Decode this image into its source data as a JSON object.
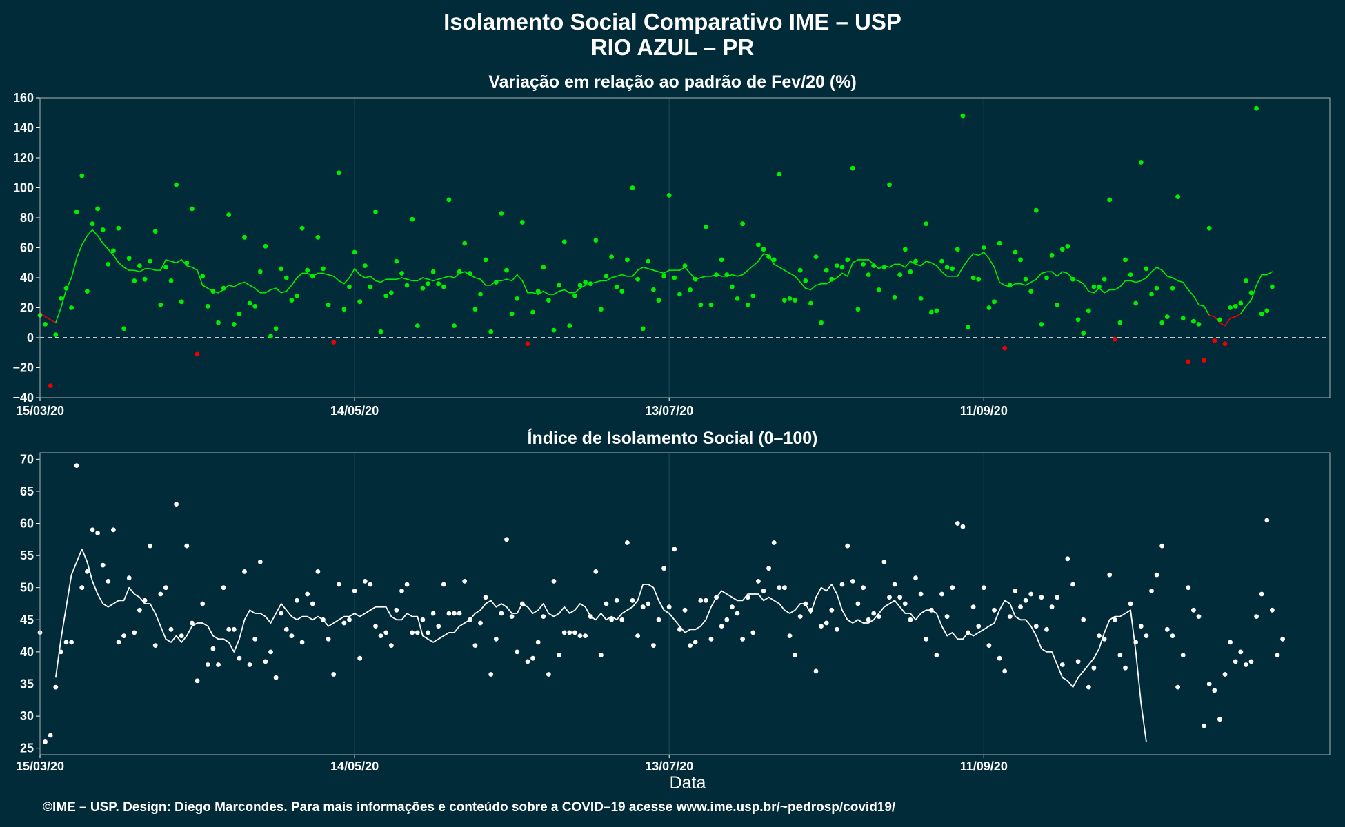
{
  "figure": {
    "title_line1": "Isolamento Social Comparativo IME – USP",
    "title_line2": "RIO AZUL – PR",
    "xlabel": "Data",
    "footer": "©IME – USP. Design: Diego Marcondes. Para mais informações e conteúdo sobre a COVID–19 acesse www.ime.usp.br/~pedrosp/covid19/",
    "colors": {
      "background": "#022b3a",
      "positive": "#00ee00",
      "negative": "#ee0000",
      "index_series": "#ffffff",
      "grid": "#1d4a57",
      "frame": "#a8b4b8"
    }
  },
  "chart_data": [
    {
      "type": "scatter",
      "title": "Variação em relação ao padrão de Fev/20 (%)",
      "x_axis": {
        "type": "date",
        "start": "2020-03-15",
        "end": "2020-11-16",
        "ticks": [
          "15/03/20",
          "14/05/20",
          "13/07/20",
          "11/09/20"
        ],
        "tick_dates": [
          "2020-03-15",
          "2020-05-14",
          "2020-07-13",
          "2020-09-11"
        ]
      },
      "ylim": [
        -40,
        160
      ],
      "yticks": [
        -40,
        -20,
        0,
        20,
        40,
        60,
        80,
        100,
        120,
        140,
        160
      ],
      "reference_line": 0,
      "series": [
        {
          "kind": "daily_points",
          "values": [
            15,
            9,
            -32,
            2,
            26,
            33,
            20,
            84,
            108,
            31,
            76,
            86,
            72,
            49,
            58,
            73,
            6,
            53,
            38,
            48,
            39,
            51,
            71,
            22,
            47,
            38,
            102,
            24,
            50,
            86,
            -11,
            41,
            21,
            31,
            10,
            33,
            82,
            9,
            16,
            67,
            23,
            21,
            44,
            61,
            1,
            6,
            46,
            40,
            25,
            28,
            73,
            45,
            41,
            67,
            46,
            22,
            -3,
            110,
            19,
            34,
            57,
            24,
            48,
            34,
            84,
            4,
            28,
            30,
            51,
            43,
            35,
            79,
            8,
            33,
            36,
            44,
            36,
            34,
            92,
            8,
            44,
            63,
            43,
            19,
            29,
            52,
            4,
            37,
            83,
            45,
            16,
            26,
            77,
            -4,
            17,
            31,
            47,
            25,
            5,
            35,
            64,
            8,
            28,
            35,
            37,
            36,
            65,
            19,
            41,
            54,
            34,
            31,
            52,
            100,
            39,
            6,
            51,
            32,
            25,
            41,
            95,
            40,
            29,
            48,
            32,
            39,
            22,
            74,
            22,
            42,
            52,
            42,
            34,
            26,
            76,
            22,
            28,
            62,
            59,
            54,
            52,
            109,
            25,
            26,
            25,
            45,
            38,
            23,
            54,
            10,
            45,
            39,
            48,
            47,
            52,
            113,
            19,
            49,
            42,
            48,
            32,
            47,
            102,
            27,
            42,
            59,
            44,
            51,
            26,
            76,
            17,
            18,
            51,
            47,
            46,
            59,
            148,
            7,
            40,
            39,
            60,
            20,
            24,
            63,
            -7,
            35,
            57,
            52,
            39,
            31,
            85,
            9,
            40,
            55,
            22,
            59,
            61,
            39,
            12,
            3,
            18,
            34,
            34,
            39,
            92,
            -1,
            10,
            52,
            42,
            23,
            117,
            46,
            29,
            33,
            10,
            14,
            33,
            94,
            13,
            -16,
            11,
            9,
            -15,
            73,
            -2,
            12,
            -4,
            20,
            21,
            23,
            38,
            30,
            153,
            16,
            18,
            34
          ]
        },
        {
          "kind": "moving_average",
          "values": [
            17,
            14,
            12,
            10,
            20,
            32,
            40,
            53,
            62,
            68,
            72,
            68,
            63,
            59,
            55,
            50,
            47,
            45,
            45,
            44,
            46,
            46,
            45,
            45,
            52,
            51,
            50,
            52,
            48,
            47,
            45,
            35,
            33,
            31,
            30,
            32,
            35,
            34,
            36,
            37,
            35,
            33,
            30,
            30,
            32,
            33,
            30,
            31,
            35,
            40,
            43,
            43,
            41,
            43,
            43,
            42,
            41,
            38,
            36,
            40,
            46,
            42,
            40,
            41,
            38,
            37,
            39,
            39,
            39,
            40,
            39,
            38,
            38,
            40,
            39,
            38,
            39,
            40,
            41,
            40,
            43,
            44,
            42,
            40,
            39,
            35,
            35,
            38,
            38,
            39,
            38,
            42,
            38,
            30,
            30,
            29,
            31,
            29,
            29,
            31,
            32,
            30,
            30,
            33,
            35,
            36,
            37,
            38,
            38,
            40,
            41,
            42,
            41,
            41,
            45,
            47,
            46,
            45,
            44,
            43,
            45,
            45,
            45,
            47,
            43,
            39,
            40,
            41,
            41,
            42,
            41,
            41,
            42,
            41,
            42,
            45,
            48,
            51,
            56,
            55,
            49,
            47,
            45,
            43,
            41,
            37,
            33,
            32,
            35,
            36,
            36,
            38,
            40,
            43,
            41,
            50,
            52,
            52,
            52,
            49,
            46,
            48,
            47,
            49,
            49,
            47,
            51,
            49,
            48,
            51,
            50,
            48,
            44,
            41,
            41,
            41,
            47,
            52,
            56,
            55,
            57,
            53,
            47,
            37,
            35,
            34,
            36,
            36,
            35,
            37,
            39,
            43,
            44,
            44,
            41,
            44,
            43,
            39,
            38,
            36,
            31,
            30,
            33,
            30,
            32,
            32,
            34,
            38,
            38,
            37,
            38,
            40,
            44,
            47,
            45,
            41,
            40,
            38,
            37,
            32,
            28,
            22,
            21,
            15,
            14,
            10,
            8,
            13,
            14,
            16,
            21,
            25,
            35,
            42,
            42,
            44
          ]
        }
      ]
    },
    {
      "type": "scatter",
      "title": "Índice de Isolamento Social (0–100)",
      "x_axis": {
        "type": "date",
        "start": "2020-03-15",
        "end": "2020-11-16",
        "ticks": [
          "15/03/20",
          "14/05/20",
          "13/07/20",
          "11/09/20"
        ],
        "tick_dates": [
          "2020-03-15",
          "2020-05-14",
          "2020-07-13",
          "2020-09-11"
        ]
      },
      "xlabel": "Data",
      "ylim": [
        24,
        71
      ],
      "yticks": [
        25,
        30,
        35,
        40,
        45,
        50,
        55,
        60,
        65,
        70
      ],
      "series": [
        {
          "kind": "daily_points",
          "values": [
            43,
            26,
            27,
            34.5,
            40,
            41.5,
            41.5,
            69,
            50,
            52.5,
            59,
            58.5,
            53.5,
            51,
            59,
            41.5,
            42.5,
            51.5,
            43,
            46.5,
            48,
            56.5,
            41,
            49,
            50,
            43.5,
            63,
            42.5,
            56.5,
            44.5,
            35.5,
            47.5,
            38,
            40.5,
            38,
            50,
            43.5,
            43.5,
            39,
            52.5,
            38,
            42,
            54,
            38.5,
            40,
            36,
            46,
            43.5,
            42.5,
            48,
            41.5,
            49,
            47.5,
            52.5,
            45,
            42,
            36.5,
            50.5,
            44.5,
            45,
            49.5,
            39,
            51,
            50.5,
            44,
            42.5,
            43,
            41,
            46.5,
            49.5,
            50.5,
            43,
            43,
            45,
            43,
            46,
            44,
            50.5,
            46,
            46,
            46,
            51,
            45,
            41,
            44.5,
            48.5,
            36.5,
            42,
            46,
            57.5,
            45.5,
            40,
            47.5,
            38.5,
            39,
            41.5,
            45.5,
            36.5,
            51,
            39.5,
            43,
            43,
            43,
            42.5,
            42.5,
            45.5,
            52.5,
            39.5,
            47.5,
            45,
            48,
            45,
            57,
            48,
            42.5,
            47,
            47.5,
            41,
            45,
            53,
            47,
            56,
            43.5,
            46.5,
            41,
            41.5,
            48,
            48,
            42,
            48.5,
            44,
            45,
            47,
            46,
            42,
            48.5,
            43,
            51,
            49.5,
            53,
            57,
            50,
            50,
            42.5,
            39.5,
            45.5,
            47.5,
            46.5,
            37,
            44,
            44.5,
            46.5,
            43.5,
            50.5,
            56.5,
            51,
            47.5,
            50,
            45,
            46,
            45.5,
            54,
            48.5,
            50.5,
            48.5,
            47.5,
            45,
            51.5,
            49,
            42,
            46.5,
            39.5,
            49,
            45.5,
            50,
            60,
            59.5,
            43,
            47,
            44,
            50,
            41,
            46.5,
            39,
            37,
            45.5,
            49.5,
            47,
            48,
            49,
            44,
            48.5,
            43.5,
            47,
            48.5,
            38,
            54.5,
            50.5,
            38.5,
            45,
            34.5,
            37.5,
            42.5,
            42,
            52,
            45,
            39.5,
            37.5,
            47.5,
            41.5,
            44,
            42.5,
            49.5,
            52,
            56.5,
            43.5,
            42.5,
            34.5,
            39.5,
            50,
            46.5,
            45.5,
            28.5,
            35,
            34,
            29.5,
            36.5,
            41.5,
            38.5,
            40,
            38,
            38.5,
            45.5,
            49,
            60.5,
            46.5,
            39.5,
            42
          ]
        },
        {
          "kind": "moving_average",
          "values": [
            null,
            null,
            null,
            36,
            42,
            47,
            52,
            54,
            56,
            54,
            51,
            49,
            47.5,
            47,
            47.5,
            48,
            48,
            50,
            49,
            48.5,
            47.5,
            47.5,
            46,
            44,
            42,
            41.5,
            42.5,
            41.5,
            42.5,
            44,
            44.5,
            44.5,
            44,
            42.5,
            42,
            42,
            41.5,
            40,
            42,
            45,
            46.5,
            46,
            46,
            45.5,
            44.5,
            46,
            47.5,
            46.5,
            45.5,
            45,
            45.5,
            45.5,
            45,
            45.5,
            45,
            44,
            44.5,
            45,
            45.5,
            45.5,
            46,
            45.5,
            46,
            46.5,
            47,
            47,
            47,
            45.5,
            45,
            45,
            46,
            45.5,
            45.5,
            42.5,
            42,
            41.5,
            42,
            42.5,
            43,
            43,
            44,
            44.5,
            45,
            46,
            46.5,
            47.5,
            48,
            47,
            47.5,
            47,
            46,
            46,
            47.5,
            47,
            46,
            46.5,
            47.5,
            46,
            45.5,
            46,
            47,
            46,
            46.5,
            47.5,
            47,
            45.5,
            45,
            46,
            45,
            45.5,
            45,
            46,
            46.5,
            47,
            48,
            50.5,
            50.5,
            50,
            48,
            46.5,
            46,
            45,
            44,
            43,
            43.5,
            43.5,
            44,
            45,
            47,
            48.5,
            49.5,
            49,
            48.5,
            48,
            48,
            49,
            49,
            49,
            48,
            48.5,
            48,
            47.5,
            46.5,
            46,
            46.5,
            47.5,
            47.5,
            46,
            48.5,
            50,
            49.5,
            50.5,
            49,
            46.5,
            45,
            44.5,
            45,
            44.5,
            44.5,
            45,
            46,
            47,
            47.5,
            48,
            47,
            46,
            46,
            45,
            46,
            46.5,
            46.5,
            46,
            44,
            42.5,
            43,
            42,
            42,
            43,
            42.5,
            43,
            43.5,
            44,
            44.5,
            46.5,
            48,
            47.5,
            45.5,
            45,
            45,
            44,
            42.5,
            40.5,
            40,
            40,
            38,
            36,
            35.5,
            34.5,
            36,
            37,
            38,
            39,
            40.5,
            43,
            45,
            45.5,
            45.5,
            46,
            46.5,
            40,
            32,
            26
          ]
        }
      ]
    }
  ]
}
